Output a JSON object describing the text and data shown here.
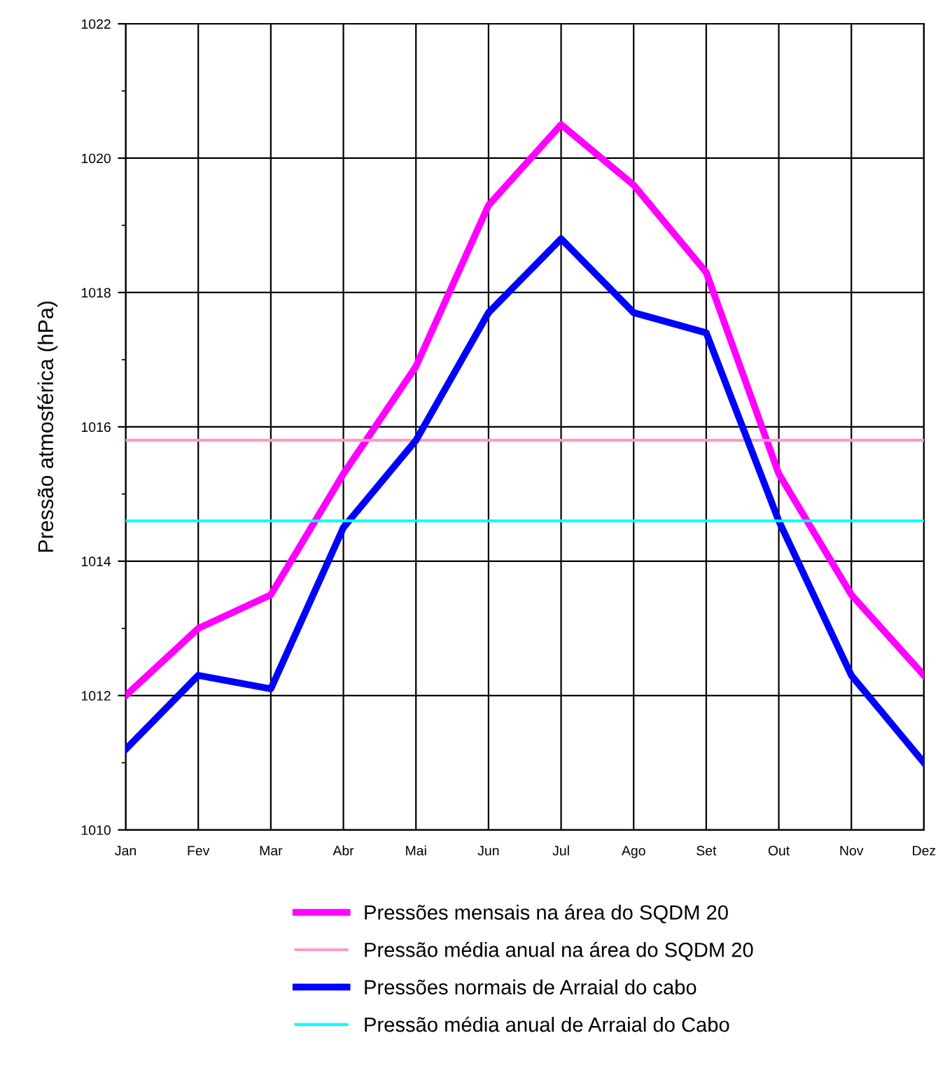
{
  "chart_data": {
    "type": "line",
    "ylabel": "Pressão atmosférica (hPa)",
    "categories": [
      "Jan",
      "Fev",
      "Mar",
      "Abr",
      "Mai",
      "Jun",
      "Jul",
      "Ago",
      "Set",
      "Out",
      "Nov",
      "Dez"
    ],
    "series": [
      {
        "name": "Pressões mensais na área do SQDM 20",
        "color": "#ff00ff",
        "values": [
          1012.0,
          1013.0,
          1013.5,
          1015.3,
          1016.9,
          1019.3,
          1020.5,
          1019.6,
          1018.3,
          1015.3,
          1013.5,
          1012.3
        ]
      },
      {
        "name": "Pressão média anual na área do SQDM 20",
        "color": "#ff99cc",
        "values": [
          1015.8,
          1015.8,
          1015.8,
          1015.8,
          1015.8,
          1015.8,
          1015.8,
          1015.8,
          1015.8,
          1015.8,
          1015.8,
          1015.8
        ]
      },
      {
        "name": "Pressões normais de Arraial do cabo",
        "color": "#0000ff",
        "values": [
          1011.2,
          1012.3,
          1012.1,
          1014.5,
          1015.8,
          1017.7,
          1018.8,
          1017.7,
          1017.4,
          1014.6,
          1012.3,
          1011.0
        ]
      },
      {
        "name": "Pressão média anual de Arraial do Cabo",
        "color": "#00ffff",
        "values": [
          1014.6,
          1014.6,
          1014.6,
          1014.6,
          1014.6,
          1014.6,
          1014.6,
          1014.6,
          1014.6,
          1014.6,
          1014.6,
          1014.6
        ]
      }
    ],
    "ylim": [
      1010,
      1022
    ],
    "yticks": [
      1010,
      {
        "value": 1011,
        "label": null
      },
      1012,
      {
        "value": 1013,
        "label": null
      },
      1014,
      {
        "value": 1015,
        "label": null
      },
      1016,
      {
        "value": 1017,
        "label": null
      },
      1018,
      {
        "value": 1019,
        "label": null
      },
      1020,
      {
        "value": 1021,
        "label": null
      },
      1022
    ],
    "grid": true,
    "legend": "bottom",
    "line_style": "solid",
    "marker": "none"
  }
}
